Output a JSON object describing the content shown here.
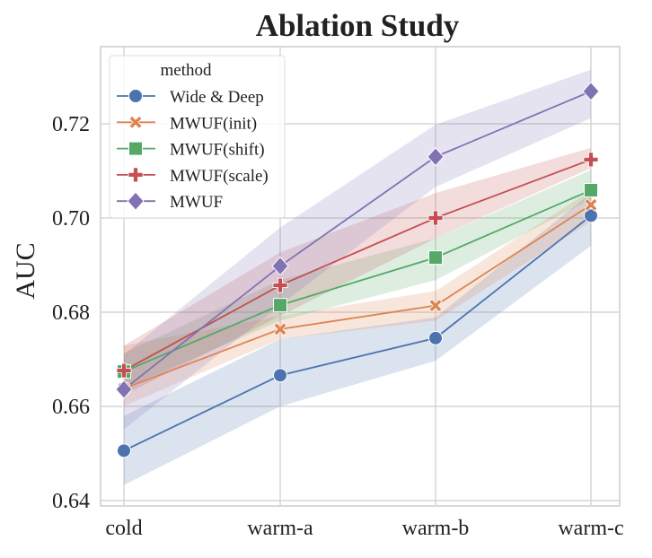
{
  "chart_data": {
    "type": "line",
    "title": "Ablation Study",
    "xlabel": "",
    "ylabel": "AUC",
    "categories": [
      "cold",
      "warm-a",
      "warm-b",
      "warm-c"
    ],
    "ylim": [
      0.64,
      0.73
    ],
    "yticks": [
      "0.64",
      "0.66",
      "0.68",
      "0.70",
      "0.72"
    ],
    "grid": true,
    "legend": {
      "title": "method",
      "placement": "top-left"
    },
    "series": [
      {
        "name": "Wide & Deep",
        "color": "#4c72b0",
        "marker": "circle",
        "values": [
          0.6506,
          0.6666,
          0.6745,
          0.7005
        ],
        "ci_low": [
          0.6433,
          0.66,
          0.6697,
          0.6941
        ],
        "ci_high": [
          0.658,
          0.6743,
          0.6789,
          0.7053
        ]
      },
      {
        "name": "MWUF(init)",
        "color": "#dd8452",
        "marker": "x",
        "values": [
          0.6638,
          0.6764,
          0.6814,
          0.7028
        ],
        "ci_low": [
          0.6601,
          0.6743,
          0.6782,
          0.6993
        ],
        "ci_high": [
          0.6729,
          0.6792,
          0.6845,
          0.7059
        ]
      },
      {
        "name": "MWUF(shift)",
        "color": "#55a868",
        "marker": "square",
        "values": [
          0.6674,
          0.6815,
          0.6916,
          0.7059
        ],
        "ci_low": [
          0.6638,
          0.6782,
          0.6868,
          0.704
        ],
        "ci_high": [
          0.6713,
          0.6868,
          0.6957,
          0.7102
        ]
      },
      {
        "name": "MWUF(scale)",
        "color": "#c44e52",
        "marker": "plus",
        "values": [
          0.6676,
          0.6857,
          0.7,
          0.7124
        ],
        "ci_low": [
          0.6624,
          0.6792,
          0.6957,
          0.7106
        ],
        "ci_high": [
          0.6729,
          0.6927,
          0.7053,
          0.7149
        ]
      },
      {
        "name": "MWUF",
        "color": "#8172b3",
        "marker": "diamond",
        "values": [
          0.6636,
          0.6898,
          0.713,
          0.7269
        ],
        "ci_low": [
          0.6551,
          0.6815,
          0.7066,
          0.7212
        ],
        "ci_high": [
          0.671,
          0.698,
          0.7198,
          0.7315
        ]
      }
    ]
  }
}
